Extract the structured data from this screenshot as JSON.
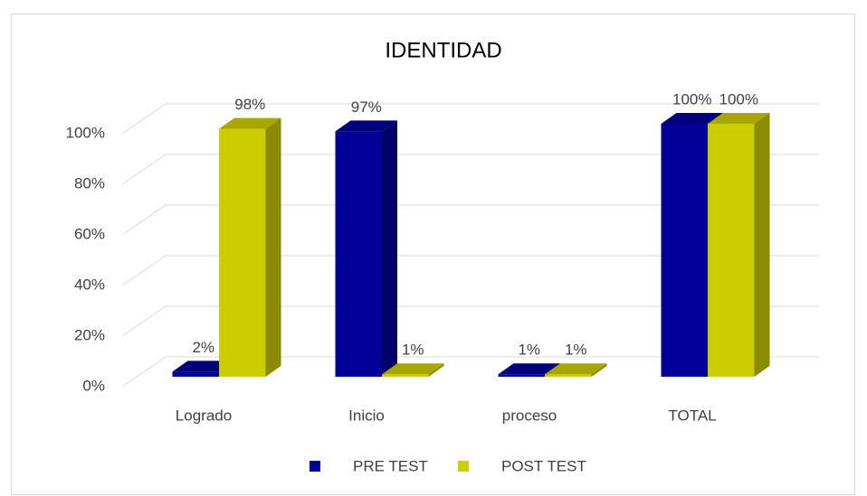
{
  "chart_data": {
    "type": "bar3d",
    "title": "IDENTIDAD",
    "categories": [
      "Logrado",
      "Inicio",
      "proceso",
      "TOTAL"
    ],
    "series": [
      {
        "name": "PRE TEST",
        "color": "#000099",
        "values": [
          2,
          97,
          1,
          100
        ],
        "value_labels": [
          "2%",
          "97%",
          "1%",
          "100%"
        ]
      },
      {
        "name": "POST TEST",
        "color": "#cccc00",
        "values": [
          98,
          1,
          1,
          100
        ],
        "value_labels": [
          "98%",
          "1%",
          "1%",
          "100%"
        ]
      }
    ],
    "ylim": [
      0,
      100
    ],
    "yticks": [
      {
        "value": 0,
        "label": "0%"
      },
      {
        "value": 20,
        "label": "20%"
      },
      {
        "value": 40,
        "label": "40%"
      },
      {
        "value": 60,
        "label": "60%"
      },
      {
        "value": 80,
        "label": "80%"
      },
      {
        "value": 100,
        "label": "100%"
      }
    ],
    "grid": true,
    "legend": "bottom"
  }
}
